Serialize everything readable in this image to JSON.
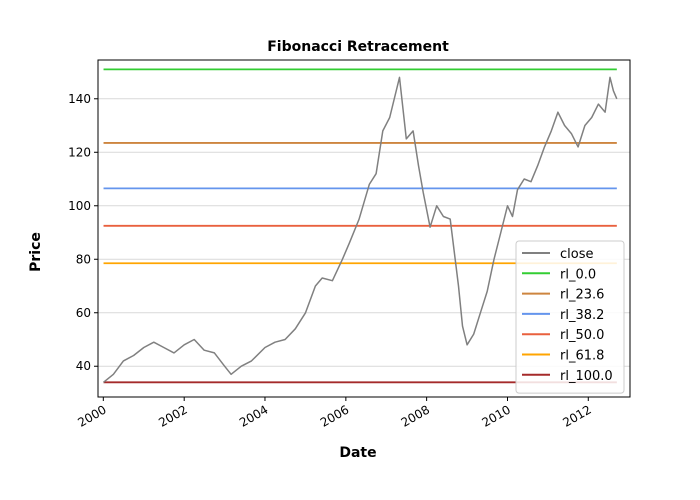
{
  "chart_data": {
    "type": "line",
    "title": "Fibonacci Retracement",
    "xlabel": "Date",
    "ylabel": "Price",
    "xlim": [
      "1999-11-14",
      "2013-01-12"
    ],
    "ylim": [
      28.5,
      154.5
    ],
    "x_ticks": [
      "2000",
      "2002",
      "2004",
      "2006",
      "2008",
      "2010",
      "2012"
    ],
    "x_tick_dates": [
      "2000-01-01",
      "2002-01-01",
      "2004-01-01",
      "2006-01-01",
      "2008-01-01",
      "2010-01-01",
      "2012-01-01"
    ],
    "y_ticks": [
      40,
      60,
      80,
      100,
      120,
      140
    ],
    "grid": "horizontal",
    "legend_position": "lower-right",
    "series": [
      {
        "name": "close",
        "color": "#808080",
        "x": [
          "2000-01-03",
          "2000-04-01",
          "2000-07-01",
          "2000-10-01",
          "2001-01-01",
          "2001-04-01",
          "2001-07-01",
          "2001-10-01",
          "2002-01-01",
          "2002-04-01",
          "2002-07-01",
          "2002-10-01",
          "2003-01-01",
          "2003-03-01",
          "2003-06-01",
          "2003-09-01",
          "2004-01-01",
          "2004-04-01",
          "2004-07-01",
          "2004-10-01",
          "2005-01-01",
          "2005-04-01",
          "2005-06-01",
          "2005-09-01",
          "2005-12-01",
          "2006-02-01",
          "2006-05-01",
          "2006-08-01",
          "2006-10-01",
          "2006-12-01",
          "2007-02-01",
          "2007-05-01",
          "2007-07-01",
          "2007-09-01",
          "2007-10-20",
          "2007-12-01",
          "2008-02-01",
          "2008-04-01",
          "2008-06-01",
          "2008-08-01",
          "2008-10-15",
          "2008-11-20",
          "2009-01-01",
          "2009-03-01",
          "2009-05-01",
          "2009-07-01",
          "2009-09-01",
          "2009-11-01",
          "2010-01-01",
          "2010-02-15",
          "2010-04-01",
          "2010-06-01",
          "2010-08-01",
          "2010-10-01",
          "2010-12-01",
          "2011-02-01",
          "2011-04-01",
          "2011-06-01",
          "2011-08-01",
          "2011-10-01",
          "2011-12-01",
          "2012-02-01",
          "2012-04-01",
          "2012-06-01",
          "2012-07-15",
          "2012-08-15",
          "2012-09-15"
        ],
        "values": [
          34,
          37,
          42,
          44,
          47,
          49,
          47,
          45,
          48,
          50,
          46,
          45,
          40,
          37,
          40,
          42,
          47,
          49,
          50,
          54,
          60,
          70,
          73,
          72,
          80,
          86,
          95,
          108,
          112,
          128,
          133,
          148,
          125,
          128,
          115,
          105,
          92,
          100,
          96,
          95,
          70,
          55,
          48,
          52,
          60,
          68,
          80,
          90,
          100,
          96,
          106,
          110,
          109,
          115,
          122,
          128,
          135,
          130,
          127,
          122,
          130,
          133,
          138,
          135,
          148,
          143,
          140
        ]
      }
    ],
    "levels": [
      {
        "name": "rl_0.0",
        "value": 151,
        "color": "#32cd32"
      },
      {
        "name": "rl_23.6",
        "value": 123.5,
        "color": "#cd853f"
      },
      {
        "name": "rl_38.2",
        "value": 106.5,
        "color": "#6495ed"
      },
      {
        "name": "rl_50.0",
        "value": 92.5,
        "color": "#e9603e"
      },
      {
        "name": "rl_61.8",
        "value": 78.5,
        "color": "#ffa500"
      },
      {
        "name": "rl_100.0",
        "value": 34,
        "color": "#a52a2a"
      }
    ]
  }
}
